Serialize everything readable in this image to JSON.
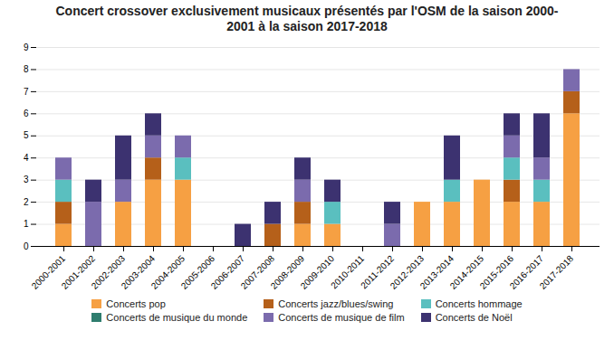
{
  "chart_data": {
    "type": "bar",
    "stacked": true,
    "title": "Concert crossover exclusivement musicaux présentés par l'OSM de la saison 2000-2001 à la saison 2017-2018",
    "categories": [
      "2000-2001",
      "2001-2002",
      "2002-2003",
      "2003-2004",
      "2004-2005",
      "2005-2006",
      "2006-2007",
      "2007-2008",
      "2008-2009",
      "2009-2010",
      "2010-2011",
      "2011-2012",
      "2012-2013",
      "2013-2014",
      "2014-2015",
      "2015-2016",
      "2016-2017",
      "2017-2018"
    ],
    "series": [
      {
        "name": "Concerts pop",
        "color": "#f6a043",
        "values": [
          1,
          0,
          2,
          3,
          3,
          0,
          0,
          0,
          1,
          1,
          0,
          0,
          2,
          2,
          3,
          2,
          2,
          6
        ]
      },
      {
        "name": "Concerts jazz/blues/swing",
        "color": "#b5601a",
        "values": [
          1,
          0,
          0,
          1,
          0,
          0,
          0,
          1,
          1,
          0,
          0,
          0,
          0,
          0,
          0,
          1,
          0,
          1
        ]
      },
      {
        "name": "Concerts hommage",
        "color": "#5abfbf",
        "values": [
          1,
          0,
          0,
          0,
          1,
          0,
          0,
          0,
          0,
          1,
          0,
          0,
          0,
          1,
          0,
          1,
          1,
          0
        ]
      },
      {
        "name": "Concerts de musique du monde",
        "color": "#2e7d6e",
        "values": [
          0,
          0,
          0,
          0,
          0,
          0,
          0,
          0,
          0,
          0,
          0,
          0,
          0,
          0,
          0,
          0,
          0,
          0
        ]
      },
      {
        "name": "Concerts de musique de film",
        "color": "#7b6bad",
        "values": [
          1,
          2,
          1,
          1,
          1,
          0,
          0,
          0,
          1,
          0,
          0,
          1,
          0,
          0,
          0,
          1,
          1,
          1
        ]
      },
      {
        "name": "Concerts de Noël",
        "color": "#3c3270",
        "values": [
          0,
          1,
          2,
          1,
          0,
          0,
          1,
          1,
          1,
          1,
          0,
          1,
          0,
          2,
          0,
          1,
          2,
          0
        ]
      }
    ],
    "ylim": [
      0,
      9
    ],
    "yticks": [
      0,
      1,
      2,
      3,
      4,
      5,
      6,
      7,
      8,
      9
    ],
    "grid": true,
    "legend": "bottom"
  }
}
